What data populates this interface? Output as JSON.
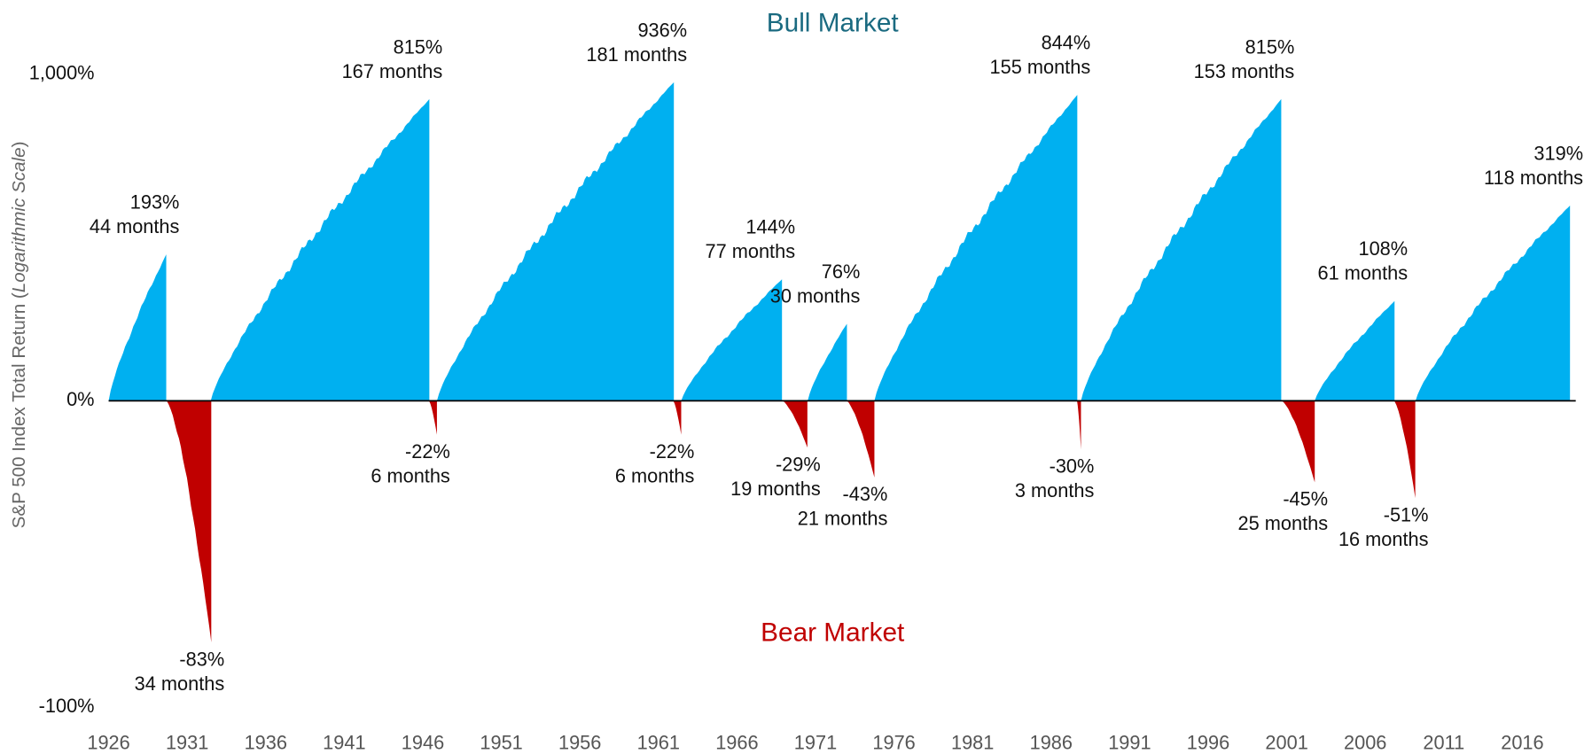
{
  "chart_data": {
    "type": "area",
    "y_label_parts": [
      "S&P 500 Index Total Return (",
      "Logarithmic Scale",
      ")"
    ],
    "log_scale": true,
    "xlim": [
      1926,
      2019.4
    ],
    "xticks": [
      1926,
      1931,
      1936,
      1941,
      1946,
      1951,
      1956,
      1961,
      1966,
      1971,
      1976,
      1981,
      1986,
      1991,
      1996,
      2001,
      2006,
      2011,
      2016
    ],
    "ylim": [
      -100,
      1000
    ],
    "yticks": [
      {
        "value": 1000,
        "label": "1,000%"
      },
      {
        "value": 0,
        "label": "0%"
      },
      {
        "value": -100,
        "label": "-100%"
      }
    ],
    "series": [
      {
        "name": "Bull Market",
        "color": "#00b0f0",
        "title_color": "#1a6a80",
        "x": [
          1926.0,
          1932.5,
          1946.9,
          1962.45,
          1970.5,
          1974.75,
          1987.9,
          2002.78,
          2009.2
        ],
        "months": [
          44,
          167,
          181,
          77,
          30,
          155,
          153,
          61,
          118
        ],
        "month_labels": [
          "44 months",
          "167 months",
          "181 months",
          "77 months",
          "30 months",
          "155 months",
          "153 months",
          "61 months",
          "118 months"
        ],
        "values": [
          193,
          815,
          936,
          144,
          76,
          844,
          815,
          108,
          319
        ],
        "value_labels": [
          "193%",
          "815%",
          "936%",
          "144%",
          "76%",
          "844%",
          "815%",
          "108%",
          "319%"
        ]
      },
      {
        "name": "Bear Market",
        "color": "#c00000",
        "title_color": "#c00000",
        "x": [
          1929.7,
          1946.4,
          1961.95,
          1968.9,
          1973.0,
          1987.65,
          2000.7,
          2007.85
        ],
        "months": [
          34,
          6,
          6,
          19,
          21,
          3,
          25,
          16
        ],
        "month_labels": [
          "34 months",
          "6 months",
          "6 months",
          "19 months",
          "21 months",
          "3 months",
          "25 months",
          "16 months"
        ],
        "values": [
          -83,
          -22,
          -22,
          -29,
          -43,
          -30,
          -45,
          -51
        ],
        "value_labels": [
          "-83%",
          "-22%",
          "-22%",
          "-29%",
          "-43%",
          "-30%",
          "-45%",
          "-51%"
        ]
      }
    ]
  }
}
